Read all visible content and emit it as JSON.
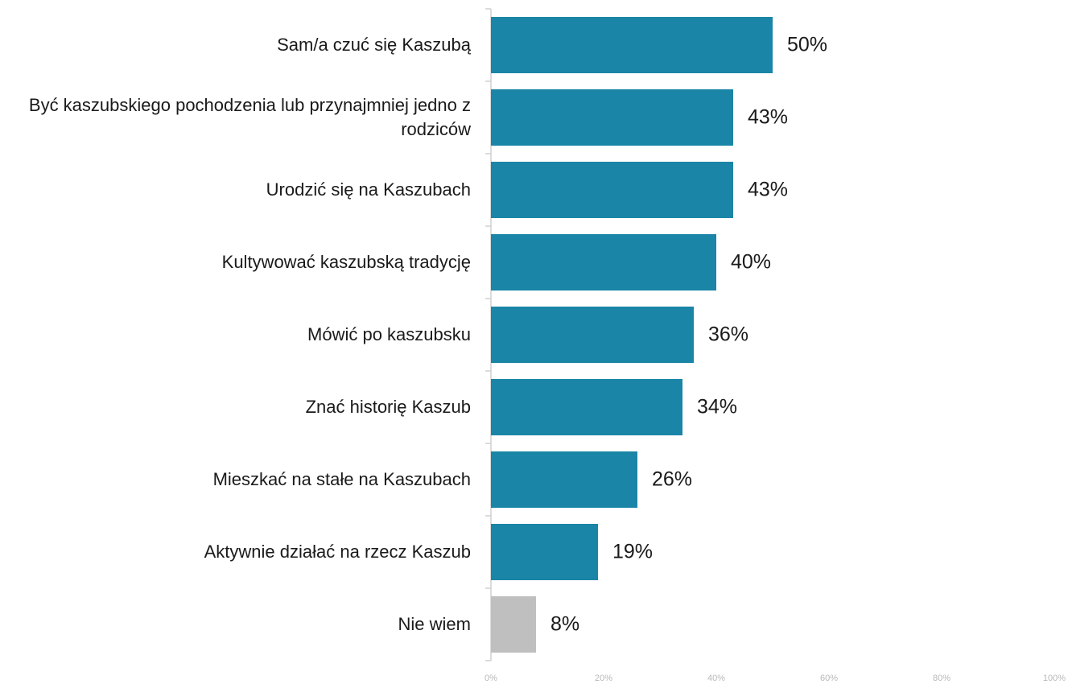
{
  "chart_data": {
    "type": "bar",
    "orientation": "horizontal",
    "categories": [
      "Sam/a czuć się Kaszubą",
      "Być kaszubskiego pochodzenia lub przynajmniej jedno z rodziców",
      "Urodzić się na Kaszubach",
      "Kultywować kaszubską tradycję",
      "Mówić po kaszubsku",
      "Znać historię Kaszub",
      "Mieszkać na stałe na Kaszubach",
      "Aktywnie działać na rzecz Kaszub",
      "Nie wiem"
    ],
    "values": [
      50,
      43,
      43,
      40,
      36,
      34,
      26,
      19,
      8
    ],
    "value_labels": [
      "50%",
      "43%",
      "43%",
      "40%",
      "36%",
      "34%",
      "26%",
      "19%",
      "8%"
    ],
    "colors": [
      "#1a85a6",
      "#1a85a6",
      "#1a85a6",
      "#1a85a6",
      "#1a85a6",
      "#1a85a6",
      "#1a85a6",
      "#1a85a6",
      "#bfbfbf"
    ],
    "xlim": [
      0,
      100
    ],
    "xticks": [
      {
        "value": 0,
        "label": "0%"
      },
      {
        "value": 20,
        "label": "20%"
      },
      {
        "value": 40,
        "label": "40%"
      },
      {
        "value": 60,
        "label": "60%"
      },
      {
        "value": 80,
        "label": "80%"
      },
      {
        "value": 100,
        "label": "100%"
      }
    ],
    "grid": false
  }
}
